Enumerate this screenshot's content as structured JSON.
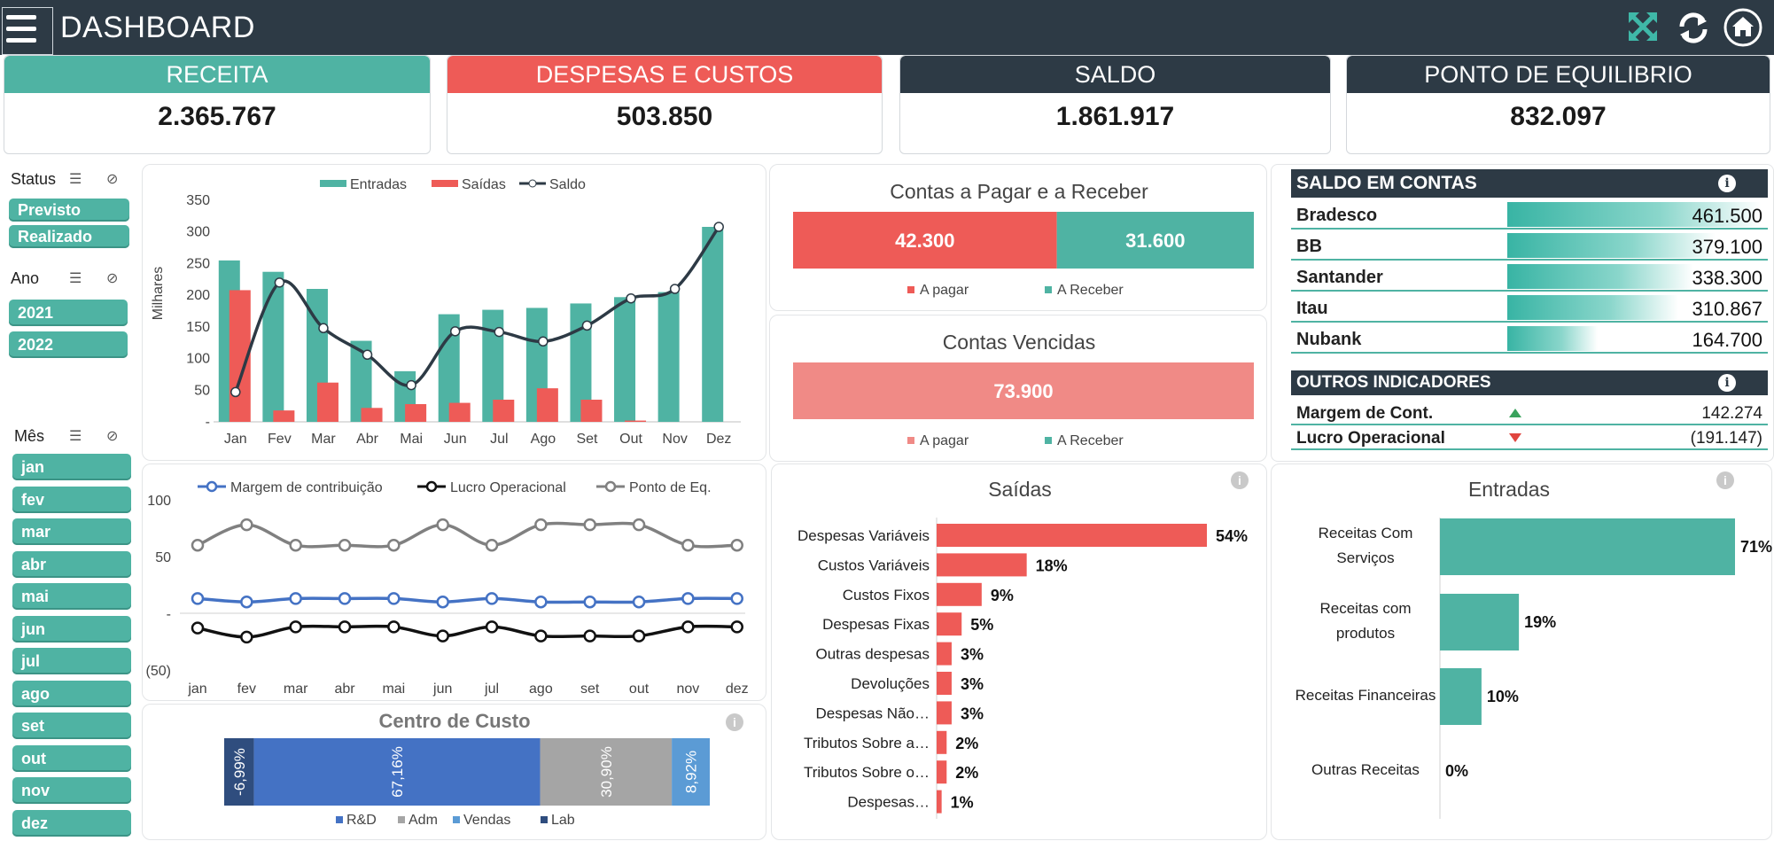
{
  "header": {
    "title": "DASHBOARD"
  },
  "colors": {
    "teal": "#4fb3a3",
    "red": "#ee5b57",
    "dark": "#2d3a45",
    "blue": "#4472c4",
    "gray": "#a5a5a5"
  },
  "icons": {
    "menu": "hamburger-menu-icon",
    "expand": "expand-arrows-icon",
    "refresh": "refresh-icon",
    "home": "home-icon"
  },
  "kpis": [
    {
      "label": "RECEITA",
      "value": "2.365.767",
      "color": "#4fb3a3"
    },
    {
      "label": "DESPESAS E CUSTOS",
      "value": "503.850",
      "color": "#ee5b57"
    },
    {
      "label": "SALDO",
      "value": "1.861.917",
      "color": "#2d3a45"
    },
    {
      "label": "PONTO DE EQUILIBRIO",
      "value": "832.097",
      "color": "#2d3a45"
    }
  ],
  "slicers": {
    "status": {
      "title": "Status",
      "items": [
        "Previsto",
        "Realizado"
      ]
    },
    "ano": {
      "title": "Ano",
      "items": [
        "2021",
        "2022"
      ]
    },
    "mes": {
      "title": "Mês",
      "items": [
        "jan",
        "fev",
        "mar",
        "abr",
        "mai",
        "jun",
        "jul",
        "ago",
        "set",
        "out",
        "nov",
        "dez"
      ]
    }
  },
  "chart_data": [
    {
      "type": "bar",
      "name": "entradas_saidas_saldo",
      "categories": [
        "Jan",
        "Fev",
        "Mar",
        "Abr",
        "Mai",
        "Jun",
        "Jul",
        "Ago",
        "Set",
        "Out",
        "Nov",
        "Dez"
      ],
      "series": [
        {
          "name": "Entradas",
          "type": "bar",
          "color": "#4fb3a3",
          "values": [
            255,
            237,
            210,
            128,
            80,
            170,
            177,
            180,
            187,
            197,
            205,
            308
          ]
        },
        {
          "name": "Saídas",
          "type": "bar",
          "color": "#ee5b57",
          "values": [
            208,
            18,
            62,
            22,
            28,
            30,
            35,
            53,
            35,
            2,
            0,
            0
          ]
        },
        {
          "name": "Saldo",
          "type": "line",
          "color": "#2d3a45",
          "values": [
            47,
            220,
            148,
            106,
            58,
            143,
            142,
            127,
            152,
            195,
            210,
            308
          ]
        }
      ],
      "ylabel": "Milhares",
      "yticks": [
        "350",
        "300",
        "250",
        "200",
        "150",
        "100",
        "50",
        "-"
      ],
      "ylim": [
        0,
        350
      ],
      "legend": "top"
    },
    {
      "type": "bar",
      "name": "contas_pagar_receber",
      "title": "Contas a Pagar e a Receber",
      "categories": [
        "A pagar",
        "A Receber"
      ],
      "values": [
        42300,
        31600
      ],
      "value_labels": [
        "42.300",
        "31.600"
      ],
      "stacked": true,
      "horizontal": true
    },
    {
      "type": "bar",
      "name": "contas_vencidas",
      "title": "Contas Vencidas",
      "categories": [
        "A pagar",
        "A Receber"
      ],
      "values": [
        73900,
        0
      ],
      "value_labels": [
        "73.900"
      ],
      "stacked": true,
      "horizontal": true
    },
    {
      "type": "line",
      "name": "indicadores_mensais",
      "x": [
        "jan",
        "fev",
        "mar",
        "abr",
        "mai",
        "jun",
        "jul",
        "ago",
        "set",
        "out",
        "nov",
        "dez"
      ],
      "series": [
        {
          "name": "Margem de contribuição",
          "color": "#4472c4",
          "values": [
            13,
            10,
            13,
            13,
            13,
            10,
            13,
            10,
            10,
            10,
            13,
            13
          ]
        },
        {
          "name": "Lucro Operacional",
          "color": "#111111",
          "values": [
            -13,
            -21,
            -12,
            -12,
            -12,
            -20,
            -12,
            -20,
            -20,
            -20,
            -12,
            -12
          ]
        },
        {
          "name": "Ponto de Eq.",
          "color": "#808080",
          "values": [
            60,
            78,
            60,
            60,
            60,
            78,
            60,
            78,
            78,
            78,
            60,
            60
          ]
        }
      ],
      "yticks": [
        "100",
        "50",
        "-",
        "(50)"
      ],
      "ylim": [
        -50,
        100
      ],
      "legend": "top"
    },
    {
      "type": "bar",
      "name": "centro_de_custo",
      "title": "Centro de Custo",
      "stacked": true,
      "horizontal": true,
      "series": [
        {
          "name": "Lab",
          "color": "#2f4d7e",
          "value": -6.99,
          "label": "-6,99%"
        },
        {
          "name": "R&D",
          "color": "#4472c4",
          "value": 67.16,
          "label": "67,16%"
        },
        {
          "name": "Adm",
          "color": "#a5a5a5",
          "value": 30.9,
          "label": "30,90%"
        },
        {
          "name": "Vendas",
          "color": "#5b9bd5",
          "value": 8.92,
          "label": "8,92%"
        }
      ],
      "legend_order": [
        "R&D",
        "Adm",
        "Vendas",
        "Lab"
      ]
    },
    {
      "type": "bar",
      "name": "saidas",
      "title": "Saídas",
      "horizontal": true,
      "categories": [
        "Despesas Variáveis",
        "Custos Variáveis",
        "Custos Fixos",
        "Despesas Fixas",
        "Outras despesas",
        "Devoluções",
        "Despesas Não…",
        "Tributos Sobre a…",
        "Tributos Sobre o…",
        "Despesas…"
      ],
      "values": [
        54,
        18,
        9,
        5,
        3,
        3,
        3,
        2,
        2,
        1
      ],
      "value_labels": [
        "54%",
        "18%",
        "9%",
        "5%",
        "3%",
        "3%",
        "3%",
        "2%",
        "2%",
        "1%"
      ]
    },
    {
      "type": "bar",
      "name": "entradas",
      "title": "Entradas",
      "horizontal": true,
      "categories": [
        "Receitas Com Serviços",
        "Receitas com produtos",
        "Receitas Financeiras",
        "Outras Receitas"
      ],
      "values": [
        71,
        19,
        10,
        0
      ],
      "value_labels": [
        "71%",
        "19%",
        "10%",
        "0%"
      ]
    }
  ],
  "saldo_contas": {
    "title": "SALDO EM CONTAS",
    "rows": [
      {
        "bank": "Bradesco",
        "amount": "461.500",
        "value": 461500
      },
      {
        "bank": "BB",
        "amount": "379.100",
        "value": 379100
      },
      {
        "bank": "Santander",
        "amount": "338.300",
        "value": 338300
      },
      {
        "bank": "Itau",
        "amount": "310.867",
        "value": 310867
      },
      {
        "bank": "Nubank",
        "amount": "164.700",
        "value": 164700
      }
    ]
  },
  "outros": {
    "title": "OUTROS INDICADORES",
    "rows": [
      {
        "label": "Margem de Cont.",
        "value": "142.274",
        "trend": "up"
      },
      {
        "label": "Lucro Operacional",
        "value": "(191.147)",
        "trend": "down"
      }
    ]
  }
}
